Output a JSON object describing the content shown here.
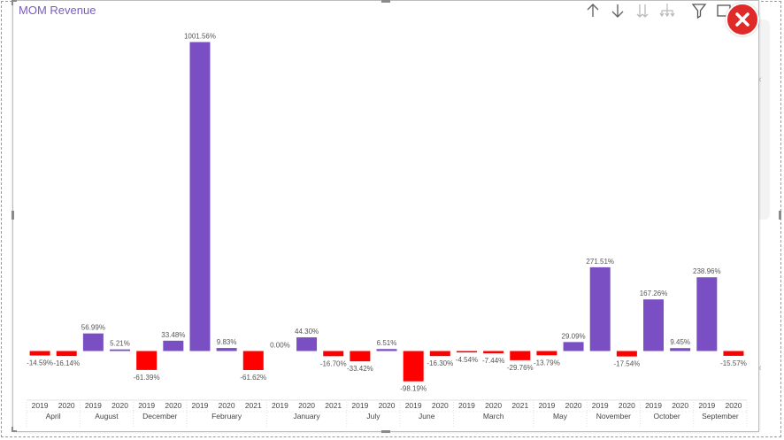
{
  "visual": {
    "title": "MOM Revenue",
    "icons": [
      "arrow-up-icon",
      "arrow-down-icon",
      "double-arrow-down-icon",
      "expand-hierarchy-icon",
      "filter-icon",
      "focus-mode-icon",
      "close-icon"
    ]
  },
  "chart_data": {
    "type": "bar",
    "title": "MOM Revenue",
    "xlabel": "",
    "ylabel": "",
    "groups": [
      {
        "month": "April",
        "years": [
          "2019",
          "2020"
        ]
      },
      {
        "month": "August",
        "years": [
          "2019",
          "2020"
        ]
      },
      {
        "month": "December",
        "years": [
          "2019",
          "2020"
        ]
      },
      {
        "month": "February",
        "years": [
          "2019",
          "2020",
          "2021"
        ]
      },
      {
        "month": "January",
        "years": [
          "2019",
          "2020",
          "2021"
        ]
      },
      {
        "month": "July",
        "years": [
          "2019",
          "2020"
        ]
      },
      {
        "month": "June",
        "years": [
          "2019",
          "2020"
        ]
      },
      {
        "month": "March",
        "years": [
          "2019",
          "2020",
          "2021"
        ]
      },
      {
        "month": "May",
        "years": [
          "2019",
          "2020"
        ]
      },
      {
        "month": "November",
        "years": [
          "2019",
          "2020"
        ]
      },
      {
        "month": "October",
        "years": [
          "2019",
          "2020"
        ]
      },
      {
        "month": "September",
        "years": [
          "2019",
          "2020"
        ]
      }
    ],
    "values": [
      -14.59,
      -16.14,
      56.99,
      5.21,
      -61.39,
      33.48,
      1001.56,
      9.83,
      -61.62,
      0.0,
      44.3,
      -16.7,
      -33.42,
      6.51,
      -98.19,
      -16.3,
      -4.54,
      -7.44,
      -29.76,
      -13.79,
      29.09,
      271.51,
      -17.54,
      167.26,
      9.45,
      238.96,
      -15.57
    ],
    "labels": [
      "-14.59%",
      "-16.14%",
      "56.99%",
      "5.21%",
      "-61.39%",
      "33.48%",
      "1001.56%",
      "9.83%",
      "-61.62%",
      "0.00%",
      "44.30%",
      "-16.70%",
      "-33.42%",
      "6.51%",
      "-98.19%",
      "-16.30%",
      "-4.54%",
      "-7.44%",
      "-29.76%",
      "-13.79%",
      "29.09%",
      "271.51%",
      "-17.54%",
      "167.26%",
      "9.45%",
      "238.96%",
      "-15.57%"
    ],
    "colors": {
      "positive": "#7a4fc4",
      "negative": "#fe0000"
    },
    "ylim": [
      -100,
      1001.56
    ]
  }
}
